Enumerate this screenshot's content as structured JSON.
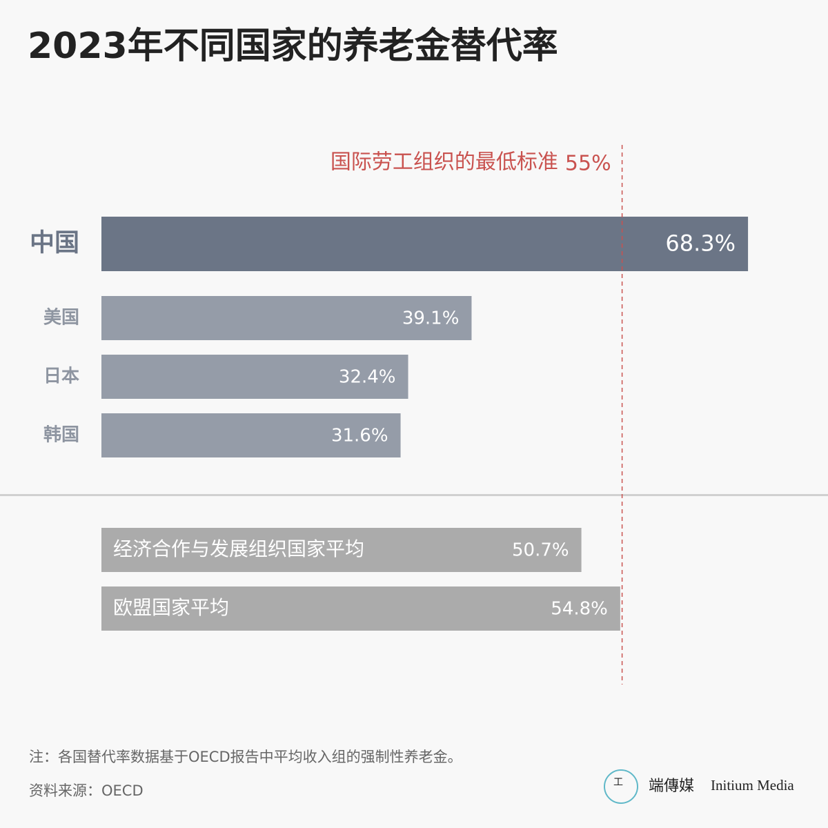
{
  "chart_data": {
    "type": "bar",
    "orientation": "horizontal",
    "title": "2023年不同国家的养老金替代率",
    "categories": [
      "中国",
      "美国",
      "日本",
      "韩国",
      "经济合作与发展组织国家平均",
      "欧盟国家平均"
    ],
    "values": [
      68.3,
      39.1,
      32.4,
      31.6,
      50.7,
      54.8
    ],
    "value_labels": [
      "68.3%",
      "39.1%",
      "32.4%",
      "31.6%",
      "50.7%",
      "54.8%"
    ],
    "colors": [
      "#6b7586",
      "#959ca8",
      "#959ca8",
      "#959ca8",
      "#ababab",
      "#ababab"
    ],
    "reference_line": {
      "label": "国际劳工组织的最低标准",
      "value": 55,
      "value_label": "55%",
      "color": "#c9524f"
    },
    "note": "注：各国替代率数据基于OECD报告中平均收入组的强制性养老金。",
    "source": "资料来源：OECD",
    "brand": "端傳媒",
    "brand_en": "Initium Media"
  }
}
